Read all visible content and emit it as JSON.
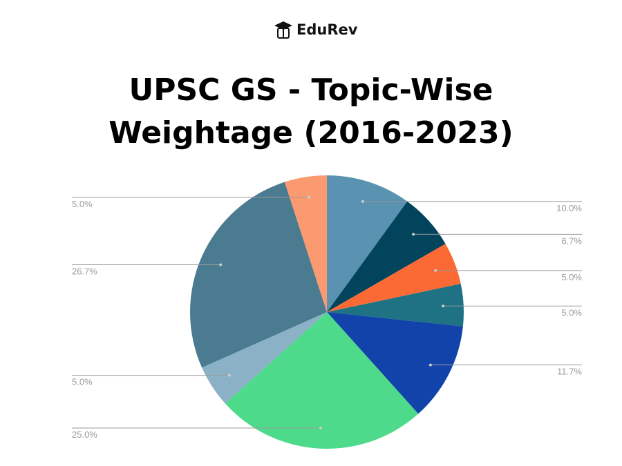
{
  "logo": "EduRev",
  "chart_data": {
    "type": "pie",
    "title": "UPSC GS - Topic-Wise Weightage (2016-2023)",
    "values": [
      10.0,
      6.7,
      5.0,
      5.0,
      11.7,
      25.0,
      5.0,
      26.7,
      5.0
    ],
    "value_labels": [
      "10.0%",
      "6.7%",
      "5.0%",
      "5.0%",
      "11.7%",
      "25.0%",
      "5.0%",
      "26.7%",
      "5.0%"
    ],
    "colors": [
      "#5a92b1",
      "#01445c",
      "#fb6a35",
      "#1f7284",
      "#1143aa",
      "#4dda8a",
      "#8ab1c6",
      "#4b7b90",
      "#fb9a70"
    ]
  }
}
